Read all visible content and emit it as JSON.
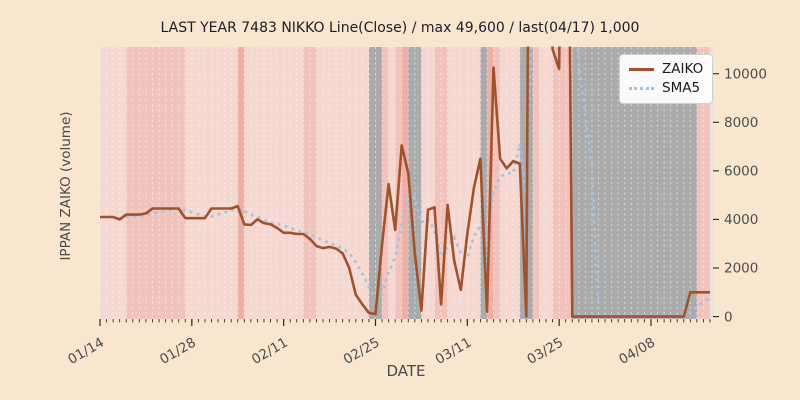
{
  "title": "LAST YEAR 7483 NIKKO Line(Close) / max 49,600 / last(04/17) 1,000",
  "axes": {
    "x_label": "DATE",
    "y_label": "IPPAN ZAIKO (volume)",
    "x_tick_labels": [
      "01/14",
      "01/28",
      "02/11",
      "02/25",
      "03/11",
      "03/25",
      "04/08"
    ],
    "x_tick_day_indices": [
      0,
      14,
      28,
      42,
      56,
      70,
      84
    ],
    "y_ticks": [
      0,
      2000,
      4000,
      6000,
      8000,
      10000
    ],
    "ylim": [
      -100,
      11100
    ],
    "grid": "vertical dashed white line per day"
  },
  "legend": {
    "position": "upper right",
    "items": [
      {
        "label": "ZAIKO",
        "color": "#a0522d",
        "style": "solid"
      },
      {
        "label": "SMA5",
        "color": "#a3c3e3",
        "style": "dotted"
      }
    ]
  },
  "chart_data": {
    "type": "line",
    "title": "LAST YEAR 7483 NIKKO Line(Close) / max 49,600 / last(04/17) 1,000",
    "xlabel": "DATE",
    "ylabel": "IPPAN ZAIKO (volume)",
    "start_date": "01/14",
    "end_date": "04/17",
    "x_unit": "daily",
    "stated_max": 49600,
    "stated_last": {
      "date": "04/17",
      "value": 1000
    },
    "ylim": [
      -100,
      11100
    ],
    "series": [
      {
        "name": "ZAIKO",
        "color": "#a0522d",
        "style": "solid",
        "values": [
          4100,
          4100,
          4100,
          4000,
          4200,
          4200,
          4200,
          4250,
          4450,
          4450,
          4450,
          4450,
          4450,
          4050,
          4050,
          4050,
          4050,
          4450,
          4450,
          4450,
          4450,
          4550,
          3800,
          3770,
          4000,
          3850,
          3800,
          3650,
          3450,
          3450,
          3400,
          3400,
          3200,
          2900,
          2820,
          2870,
          2800,
          2600,
          2000,
          900,
          500,
          150,
          100,
          2950,
          5450,
          3570,
          7050,
          5900,
          2600,
          250,
          4400,
          4500,
          500,
          4600,
          2300,
          1100,
          3400,
          5300,
          6500,
          200,
          10250,
          6500,
          6100,
          6400,
          6300,
          0,
          49600,
          30000,
          20000,
          11000,
          10200,
          31000,
          0,
          0,
          0,
          0,
          0,
          0,
          0,
          0,
          0,
          0,
          0,
          0,
          0,
          0,
          0,
          0,
          0,
          0,
          1000,
          1000,
          1000,
          1000
        ]
      },
      {
        "name": "SMA5",
        "color": "#a3c3e3",
        "style": "dotted",
        "derivation": "5-day rolling mean of ZAIKO (computed at render time, starts at 5th day)"
      }
    ]
  },
  "background_bands": {
    "note": "one vertical band per day",
    "palette": {
      "a": "#f5d8d2",
      "b": "#f1c3bc",
      "c": "#eeafa7",
      "g": "#ababab",
      "e": "#e9e2df"
    },
    "per_day": "aaaabbbbbbbbbaaaaaaaacaaaaaaaaabbaaaaaaaaggbabcggaabbaaaaagcbaaaggbaabbbgggggggggggggggggggbbe"
  },
  "colors": {
    "page_background": "#f9e6ce",
    "title_text": "#1c1c2a",
    "tick_label": "#4d4d4d",
    "tick_mark": "#2b2b2b",
    "gridline": "#ffffff",
    "zaiko_line": "#a0522d",
    "sma5_line": "#a3c3e3"
  }
}
